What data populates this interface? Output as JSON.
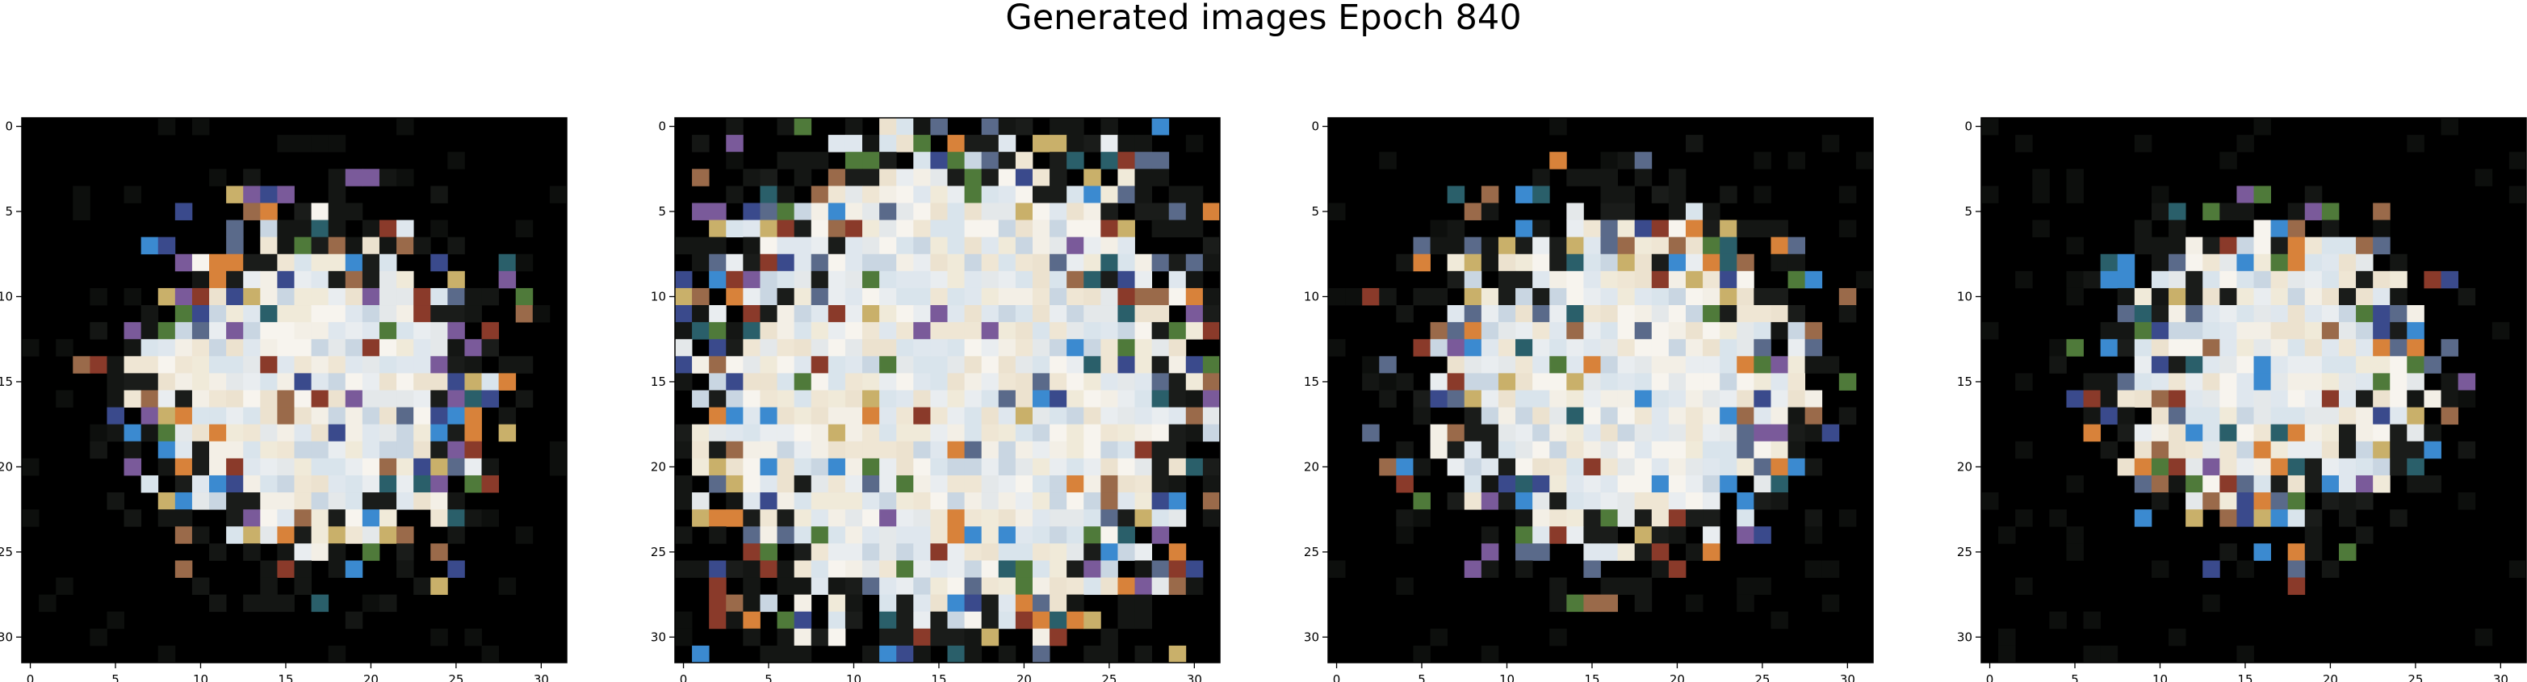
{
  "figure": {
    "title": "Generated images Epoch 840"
  },
  "colors": {
    "background": "#000000",
    "axes_frame": "#000000"
  },
  "chart_data": [
    {
      "type": "heatmap",
      "image_shape": [
        32,
        32,
        3
      ],
      "xlim": [
        -0.5,
        31.5
      ],
      "ylim": [
        31.5,
        -0.5
      ],
      "xticks": [
        0,
        5,
        10,
        15,
        20,
        25,
        30
      ],
      "yticks": [
        0,
        5,
        10,
        15,
        20,
        25,
        30
      ],
      "xtick_labels": [
        "0",
        "5",
        "10",
        "15",
        "20",
        "25",
        "30"
      ],
      "ytick_labels": [
        "0",
        "5",
        "10",
        "15",
        "20",
        "25",
        "30"
      ],
      "grid": false,
      "content": "generated 32x32 pixel image: pale blob centered on black background"
    },
    {
      "type": "heatmap",
      "image_shape": [
        32,
        32,
        3
      ],
      "xlim": [
        -0.5,
        31.5
      ],
      "ylim": [
        31.5,
        -0.5
      ],
      "xticks": [
        0,
        5,
        10,
        15,
        20,
        25,
        30
      ],
      "yticks": [
        0,
        5,
        10,
        15,
        20,
        25,
        30
      ],
      "xtick_labels": [
        "0",
        "5",
        "10",
        "15",
        "20",
        "25",
        "30"
      ],
      "ytick_labels": [
        "0",
        "5",
        "10",
        "15",
        "20",
        "25",
        "30"
      ],
      "grid": false,
      "content": "generated 32x32 pixel image: large pale blob filling most of frame"
    },
    {
      "type": "heatmap",
      "image_shape": [
        32,
        32,
        3
      ],
      "xlim": [
        -0.5,
        31.5
      ],
      "ylim": [
        31.5,
        -0.5
      ],
      "xticks": [
        0,
        5,
        10,
        15,
        20,
        25,
        30
      ],
      "yticks": [
        0,
        5,
        10,
        15,
        20,
        25,
        30
      ],
      "xtick_labels": [
        "0",
        "5",
        "10",
        "15",
        "20",
        "25",
        "30"
      ],
      "ytick_labels": [
        "0",
        "5",
        "10",
        "15",
        "20",
        "25",
        "30"
      ],
      "grid": false,
      "content": "generated 32x32 pixel image: pale blob centered on black background"
    },
    {
      "type": "heatmap",
      "image_shape": [
        32,
        32,
        3
      ],
      "xlim": [
        -0.5,
        31.5
      ],
      "ylim": [
        31.5,
        -0.5
      ],
      "xticks": [
        0,
        5,
        10,
        15,
        20,
        25,
        30
      ],
      "yticks": [
        0,
        5,
        10,
        15,
        20,
        25,
        30
      ],
      "xtick_labels": [
        "0",
        "5",
        "10",
        "15",
        "20",
        "25",
        "30"
      ],
      "ytick_labels": [
        "0",
        "5",
        "10",
        "15",
        "20",
        "25",
        "30"
      ],
      "grid": false,
      "content": "generated 32x32 pixel image: smaller pale blob centered on black background"
    }
  ]
}
